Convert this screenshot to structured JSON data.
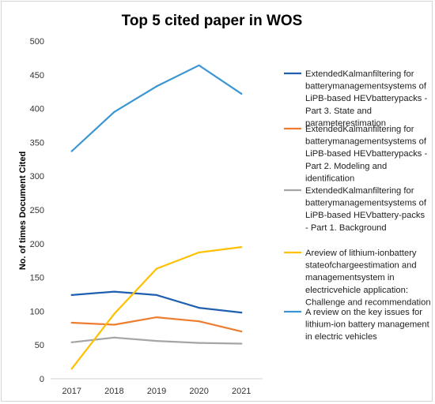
{
  "chart_data": {
    "type": "line",
    "title": "Top 5 cited paper in WOS",
    "xlabel": "",
    "ylabel": "No. of times Document Cited",
    "categories": [
      "2017",
      "2018",
      "2019",
      "2020",
      "2021"
    ],
    "ylim": [
      0,
      500
    ],
    "yticks": [
      0,
      50,
      100,
      150,
      200,
      250,
      300,
      350,
      400,
      450,
      500
    ],
    "grid": false,
    "legend_position": "right",
    "series": [
      {
        "name": "ExtendedKalmanfiltering for batterymanagementsystems of LiPB-based HEVbatterypacks - Part 3. State and parameterestimation",
        "legend_lines": [
          "ExtendedKalmanfiltering for",
          "batterymanagementsystems of",
          "LiPB-based HEVbatterypacks -",
          "Part 3. State and",
          "parameterestimation"
        ],
        "color": "#1f5fae",
        "values": [
          124,
          129,
          124,
          105,
          98
        ]
      },
      {
        "name": "ExtendedKalmanfiltering for batterymanagementsystems of LiPB-based HEVbatterypacks - Part 2. Modeling and identification",
        "legend_lines": [
          "ExtendedKalmanfiltering for",
          "batterymanagementsystems of",
          "LiPB-based HEVbatterypacks -",
          "Part 2. Modeling and",
          "identification"
        ],
        "color": "#ed7d31",
        "values": [
          83,
          80,
          91,
          85,
          70
        ]
      },
      {
        "name": "ExtendedKalmanfiltering for batterymanagementsystems of LiPB-based HEVbattery-packs - Part 1. Background",
        "legend_lines": [
          "ExtendedKalmanfiltering for",
          "batterymanagementsystems of",
          "LiPB-based HEVbattery-packs",
          "- Part 1. Background"
        ],
        "color": "#a5a5a5",
        "values": [
          54,
          61,
          56,
          53,
          52
        ]
      },
      {
        "name": "Areview of lithium-ionbattery stateofchargeestimation and managementsystem in electricvehicle application: Challenge and recommendation",
        "legend_lines": [
          "Areview of lithium-ionbattery",
          "stateofchargeestimation and",
          "managementsystem in",
          "electricvehicle application:",
          "Challenge and recommendation"
        ],
        "color": "#ffc000",
        "values": [
          15,
          96,
          163,
          187,
          195
        ]
      },
      {
        "name": "A review on the key issues for lithium-ion battery management in electric vehicles",
        "legend_lines": [
          "A review on the key issues for",
          "lithium-ion battery management",
          "in electric vehicles"
        ],
        "color": "#3a96d2",
        "values": [
          337,
          395,
          433,
          464,
          422
        ]
      }
    ]
  }
}
